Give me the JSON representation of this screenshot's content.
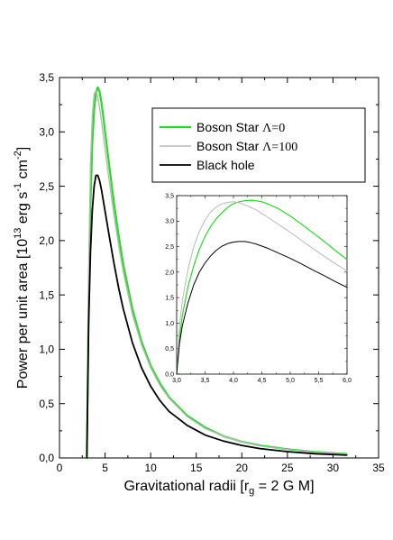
{
  "chart_data": [
    {
      "type": "line",
      "xlabel": "Gravitational radii [r",
      "xlabel_sub": "g",
      "xlabel_tail": " = 2 G M]",
      "ylabel": "Power per unit area [10",
      "ylabel_sup1": "13",
      "ylabel_mid": " erg s",
      "ylabel_sup2": "-1",
      "ylabel_mid2": " cm",
      "ylabel_sup3": "-2",
      "ylabel_tail": "]",
      "xlim": [
        0,
        35
      ],
      "ylim": [
        0,
        3.5
      ],
      "xticks": [
        "0",
        "5",
        "10",
        "15",
        "20",
        "25",
        "30",
        "35"
      ],
      "yticks": [
        "0,0",
        "0,5",
        "1,0",
        "1,5",
        "2,0",
        "2,5",
        "3,0",
        "3,5"
      ],
      "legend": {
        "position": "upper-right",
        "entries": [
          {
            "text": "Boson Star ",
            "symbol": "Λ=0",
            "color": "#22dd22"
          },
          {
            "text": "Boson Star ",
            "symbol": "Λ=100",
            "color": "#b8b8b8"
          },
          {
            "text": "Black hole",
            "symbol": "",
            "color": "#000000"
          }
        ]
      },
      "series": [
        {
          "name": "Boson Star Λ=0",
          "color": "#22dd22",
          "width": 2.2,
          "x": [
            3.0,
            3.2,
            3.4,
            3.6,
            3.8,
            4.0,
            4.2,
            4.4,
            4.6,
            4.8,
            5.0,
            5.5,
            6.0,
            6.5,
            7.0,
            8.0,
            9.0,
            10,
            11,
            12,
            14,
            16,
            18,
            20,
            22,
            25,
            28,
            31.5
          ],
          "y": [
            0.0,
            1.45,
            2.35,
            2.9,
            3.2,
            3.36,
            3.41,
            3.37,
            3.27,
            3.14,
            3.0,
            2.66,
            2.33,
            2.04,
            1.78,
            1.37,
            1.07,
            0.85,
            0.69,
            0.56,
            0.39,
            0.28,
            0.2,
            0.15,
            0.115,
            0.08,
            0.055,
            0.037
          ]
        },
        {
          "name": "Boson Star Λ=100",
          "color": "#b8b8b8",
          "width": 1.4,
          "x": [
            3.0,
            3.2,
            3.4,
            3.6,
            3.8,
            4.0,
            4.2,
            4.4,
            4.6,
            4.8,
            5.0,
            5.5,
            6.0,
            6.5,
            7.0,
            8.0,
            9.0,
            10,
            11,
            12,
            14,
            16,
            18,
            20,
            22,
            25,
            28,
            31.5
          ],
          "y": [
            0.0,
            1.75,
            2.7,
            3.15,
            3.35,
            3.38,
            3.32,
            3.22,
            3.1,
            2.97,
            2.84,
            2.52,
            2.22,
            1.95,
            1.71,
            1.32,
            1.04,
            0.83,
            0.67,
            0.55,
            0.38,
            0.27,
            0.2,
            0.15,
            0.11,
            0.077,
            0.053,
            0.035
          ]
        },
        {
          "name": "Black hole",
          "color": "#000000",
          "width": 1.8,
          "x": [
            3.0,
            3.2,
            3.4,
            3.6,
            3.8,
            4.0,
            4.2,
            4.4,
            4.6,
            4.8,
            5.0,
            5.5,
            6.0,
            6.5,
            7.0,
            8.0,
            9.0,
            10,
            11,
            12,
            14,
            16,
            18,
            20,
            22,
            25,
            28,
            31.5
          ],
          "y": [
            0.0,
            1.25,
            1.9,
            2.28,
            2.5,
            2.6,
            2.6,
            2.55,
            2.47,
            2.37,
            2.27,
            2.02,
            1.78,
            1.56,
            1.37,
            1.06,
            0.83,
            0.66,
            0.53,
            0.43,
            0.3,
            0.21,
            0.155,
            0.115,
            0.086,
            0.058,
            0.039,
            0.026
          ]
        }
      ]
    },
    {
      "type": "line",
      "role": "inset",
      "xlim": [
        3.0,
        6.0
      ],
      "ylim": [
        0.0,
        3.5
      ],
      "xticks": [
        "3,0",
        "3,5",
        "4,0",
        "4,5",
        "5,0",
        "5,5",
        "6,0"
      ],
      "yticks": [
        "0,0",
        "0,5",
        "1,0",
        "1,5",
        "2,0",
        "2,5",
        "3,0",
        "3,5"
      ],
      "series": [
        {
          "name": "Boson Star Λ=0",
          "color": "#22dd22",
          "width": 1.2,
          "x": [
            3.0,
            3.05,
            3.1,
            3.2,
            3.3,
            3.4,
            3.5,
            3.6,
            3.7,
            3.8,
            3.9,
            4.0,
            4.1,
            4.2,
            4.3,
            4.4,
            4.5,
            4.6,
            4.8,
            5.0,
            5.2,
            5.4,
            5.6,
            5.8,
            6.0
          ],
          "y": [
            0.0,
            0.7,
            1.15,
            1.72,
            2.12,
            2.45,
            2.7,
            2.9,
            3.05,
            3.17,
            3.27,
            3.34,
            3.38,
            3.4,
            3.41,
            3.4,
            3.38,
            3.34,
            3.24,
            3.1,
            2.94,
            2.77,
            2.6,
            2.42,
            2.25
          ]
        },
        {
          "name": "Boson Star Λ=100",
          "color": "#b8b8b8",
          "width": 1.0,
          "x": [
            3.0,
            3.05,
            3.1,
            3.2,
            3.3,
            3.4,
            3.5,
            3.6,
            3.7,
            3.8,
            3.9,
            4.0,
            4.1,
            4.2,
            4.3,
            4.4,
            4.5,
            4.6,
            4.8,
            5.0,
            5.2,
            5.4,
            5.6,
            5.8,
            6.0
          ],
          "y": [
            0.0,
            0.95,
            1.45,
            2.05,
            2.5,
            2.8,
            3.02,
            3.18,
            3.28,
            3.34,
            3.37,
            3.38,
            3.36,
            3.32,
            3.27,
            3.22,
            3.15,
            3.08,
            2.93,
            2.78,
            2.62,
            2.46,
            2.31,
            2.16,
            2.02
          ]
        },
        {
          "name": "Black hole",
          "color": "#000000",
          "width": 1.0,
          "x": [
            3.0,
            3.05,
            3.1,
            3.2,
            3.3,
            3.4,
            3.5,
            3.6,
            3.7,
            3.8,
            3.9,
            4.0,
            4.1,
            4.2,
            4.3,
            4.4,
            4.5,
            4.6,
            4.8,
            5.0,
            5.2,
            5.4,
            5.6,
            5.8,
            6.0
          ],
          "y": [
            0.0,
            0.6,
            0.95,
            1.4,
            1.75,
            2.0,
            2.18,
            2.32,
            2.43,
            2.51,
            2.56,
            2.59,
            2.6,
            2.6,
            2.58,
            2.55,
            2.51,
            2.47,
            2.37,
            2.27,
            2.16,
            2.04,
            1.93,
            1.81,
            1.7
          ]
        }
      ]
    }
  ]
}
